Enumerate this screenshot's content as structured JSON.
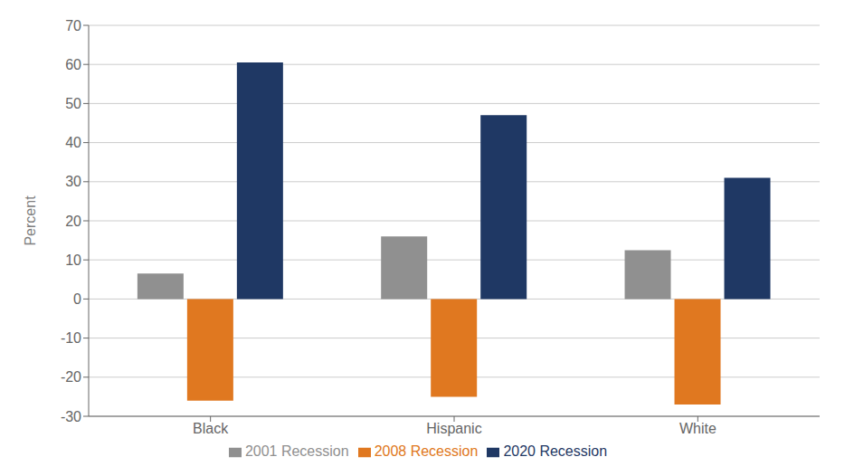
{
  "chart_data": {
    "type": "bar",
    "categories": [
      "Black",
      "Hispanic",
      "White"
    ],
    "series": [
      {
        "name": "2001 Recession",
        "color": "#909090",
        "values": [
          6.5,
          16,
          12.5
        ]
      },
      {
        "name": "2008 Recession",
        "color": "#E07820",
        "values": [
          -26,
          -25,
          -27
        ]
      },
      {
        "name": "2020 Recession",
        "color": "#1F3864",
        "values": [
          60.5,
          47,
          31
        ]
      }
    ],
    "ylabel": "Percent",
    "ylim": [
      -30,
      70
    ],
    "yticks": [
      -30,
      -20,
      -10,
      0,
      10,
      20,
      30,
      40,
      50,
      60,
      70
    ],
    "grid": true,
    "legend": "bottom"
  }
}
